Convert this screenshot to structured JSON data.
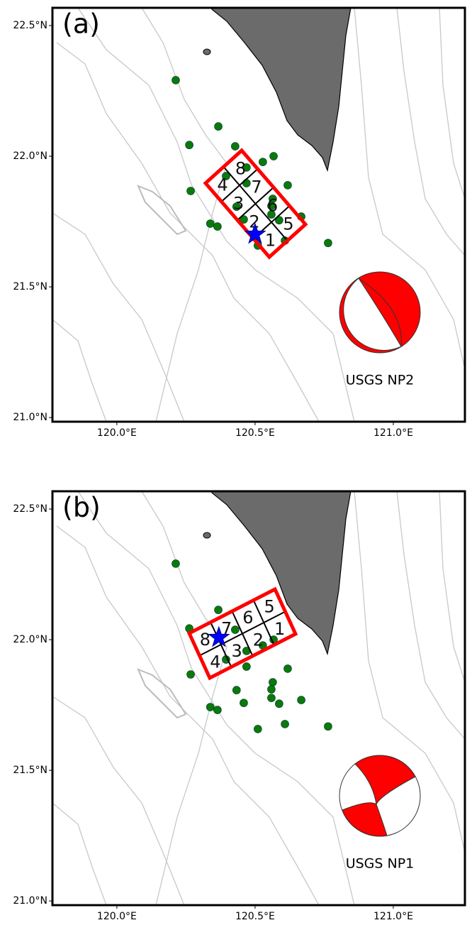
{
  "axes": {
    "xlim": [
      119.767,
      121.259
    ],
    "ylim": [
      20.984,
      22.568
    ],
    "xticks": [
      {
        "value": 120.0,
        "label": "120.0°E"
      },
      {
        "value": 120.5,
        "label": "120.5°E"
      },
      {
        "value": 121.0,
        "label": "121.0°E"
      }
    ],
    "yticks": [
      {
        "value": 21.0,
        "label": "21.0°N"
      },
      {
        "value": 21.5,
        "label": "21.5°N"
      },
      {
        "value": 22.0,
        "label": "22.0°N"
      },
      {
        "value": 22.5,
        "label": "22.5°N"
      }
    ]
  },
  "aftershocks": {
    "color": "#0a7a0a",
    "lon": [
      120.213,
      120.262,
      120.367,
      120.428,
      120.567,
      120.469,
      120.395,
      120.469,
      120.267,
      120.618,
      120.564,
      120.559,
      120.433,
      120.559,
      120.587,
      120.459,
      120.667,
      120.338,
      120.364,
      120.608,
      120.51,
      120.764,
      120.528
    ],
    "lat": [
      22.291,
      22.043,
      22.114,
      22.038,
      22.0,
      21.957,
      21.924,
      21.897,
      21.867,
      21.889,
      21.837,
      21.81,
      21.807,
      21.777,
      21.755,
      21.758,
      21.769,
      21.742,
      21.731,
      21.677,
      21.658,
      21.668,
      21.978
    ]
  },
  "panels": [
    {
      "label": "(a)",
      "mechanism_label": "USGS NP2",
      "fault_cells": [
        "1",
        "2",
        "3",
        "4",
        "5",
        "6",
        "7",
        "8"
      ],
      "epicenter": {
        "lon": 120.5,
        "lat": 21.701
      }
    },
    {
      "label": "(b)",
      "mechanism_label": "USGS NP1",
      "fault_cells": [
        "1",
        "2",
        "3",
        "4",
        "5",
        "6",
        "7",
        "8"
      ],
      "epicenter": {
        "lon": 120.369,
        "lat": 22.008
      }
    }
  ]
}
